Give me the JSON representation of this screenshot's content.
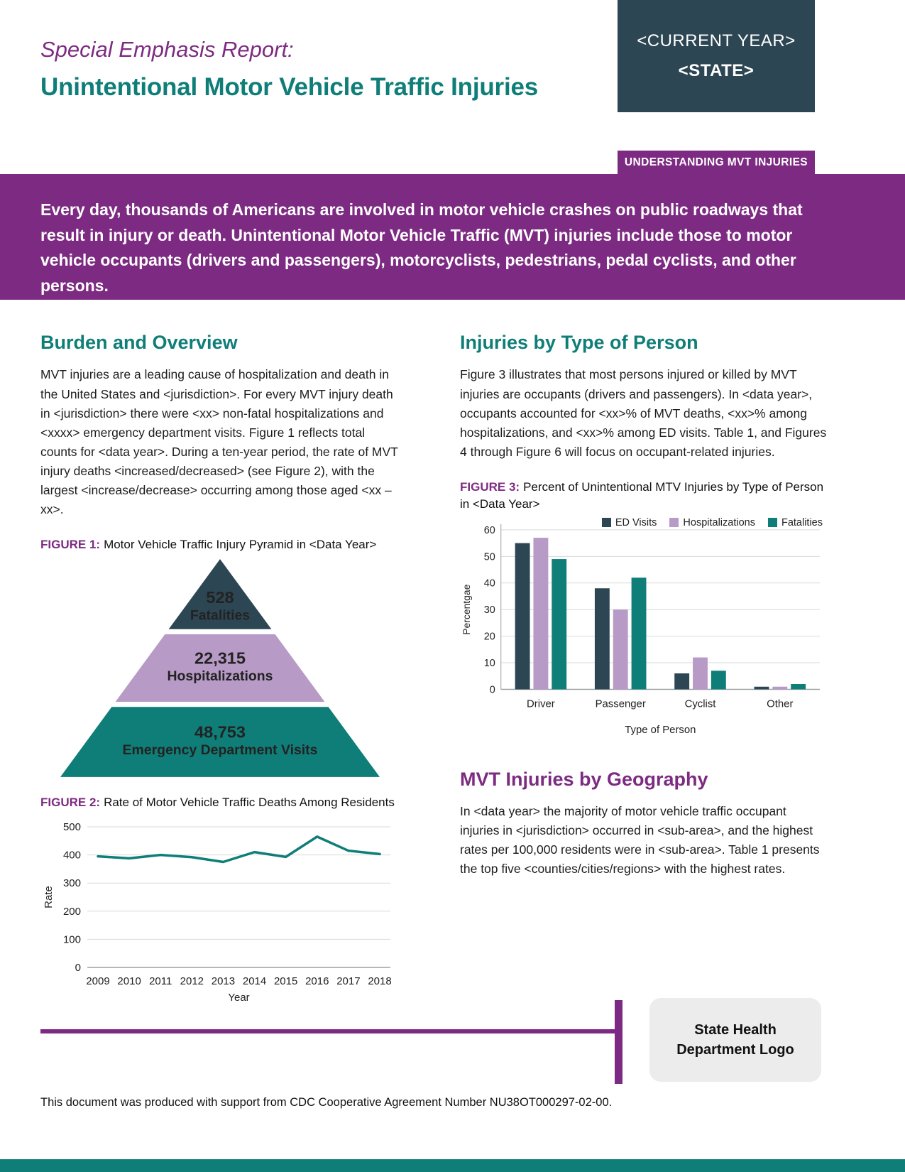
{
  "header": {
    "kicker": "Special Emphasis Report:",
    "title": "Unintentional Motor Vehicle Traffic Injuries",
    "year_box": {
      "current_year": "<CURRENT YEAR>",
      "state": "<STATE>"
    },
    "section_label": "UNDERSTANDING MVT INJURIES"
  },
  "banner": {
    "text": "Every day, thousands of Americans are involved in motor vehicle crashes on public roadways that result in injury or death. Unintentional Motor Vehicle Traffic (MVT) injuries include those to motor vehicle occupants (drivers and passengers), motorcyclists, pedestrians, pedal cyclists, and other persons."
  },
  "sections": {
    "burden": {
      "heading": "Burden and Overview",
      "body": "MVT injuries are a leading cause of hospitalization and death in the United States and <jurisdiction>. For every MVT injury death in <jurisdiction> there were <xx> non-fatal hospitalizations and <xxxx> emergency department visits. Figure 1 reflects total counts for <data year>. During a ten-year period, the rate of MVT injury deaths <increased/decreased> (see Figure 2), with the largest <increase/decrease> occurring among those aged <xx – xx>."
    },
    "type_of_person": {
      "heading": "Injuries by Type of Person",
      "body": "Figure 3 illustrates that most persons injured or killed by MVT injuries are occupants (drivers and passengers). In <data year>, occupants accounted for <xx>% of MVT deaths, <xx>% among hospitalizations, and <xx>% among ED visits. Table 1, and Figures 4 through Figure 6 will focus on occupant-related injuries."
    },
    "geography": {
      "heading": "MVT Injuries by Geography",
      "body": "In <data year> the majority of motor vehicle traffic occupant injuries in <jurisdiction> occurred in <sub-area>, and the highest rates per 100,000 residents were in <sub-area>. Table 1 presents the top five <counties/cities/regions> with the highest rates."
    }
  },
  "figures": {
    "f1": {
      "label": "FIGURE 1:",
      "caption": "Motor Vehicle Traffic Injury Pyramid in <Data Year>"
    },
    "f2": {
      "label": "FIGURE 2:",
      "caption": "Rate of Motor Vehicle Traffic Deaths Among Residents"
    },
    "f3": {
      "label": "FIGURE 3:",
      "caption": "Percent of Unintentional MTV Injuries by Type of Person in <Data Year>"
    }
  },
  "footer": {
    "note": "This document was produced with support from CDC Cooperative Agreement Number NU38OT000297-02-00.",
    "logo_text": "State Health Department Logo"
  },
  "colors": {
    "purple": "#7d2b82",
    "teal": "#0f7e78",
    "slate": "#2d4653",
    "mauve": "#b79ac5",
    "gridline": "#d9d9d9"
  },
  "chart_data": [
    {
      "id": "injury-pyramid",
      "type": "pyramid",
      "title": "Motor Vehicle Traffic Injury Pyramid in <Data Year>",
      "levels": [
        {
          "value": "528",
          "label": "Fatalities",
          "color": "#2d4653"
        },
        {
          "value": "22,315",
          "label": "Hospitalizations",
          "color": "#b79ac5"
        },
        {
          "value": "48,753",
          "label": "Emergency Department Visits",
          "color": "#0f7e78"
        }
      ]
    },
    {
      "id": "death-rate-line",
      "type": "line",
      "title": "Rate of Motor Vehicle Traffic Deaths Among Residents",
      "x": [
        2009,
        2010,
        2011,
        2012,
        2013,
        2014,
        2015,
        2016,
        2017,
        2018
      ],
      "values": [
        395,
        388,
        400,
        392,
        375,
        410,
        393,
        465,
        415,
        403
      ],
      "xlabel": "Year",
      "ylabel": "Rate",
      "ylim": [
        0,
        500
      ],
      "yticks": [
        0,
        100,
        200,
        300,
        400,
        500
      ],
      "line_color": "#0f7e78",
      "grid": true,
      "legend_position": "none"
    },
    {
      "id": "type-of-person-bar",
      "type": "bar",
      "title": "Percent of Unintentional MTV Injuries by Type of Person in <Data Year>",
      "categories": [
        "Driver",
        "Passenger",
        "Cyclist",
        "Other"
      ],
      "series": [
        {
          "name": "ED Visits",
          "color": "#2d4653",
          "values": [
            55,
            38,
            6,
            1
          ]
        },
        {
          "name": "Hospitalizations",
          "color": "#b79ac5",
          "values": [
            57,
            30,
            12,
            1
          ]
        },
        {
          "name": "Fatalities",
          "color": "#0f7e78",
          "values": [
            49,
            42,
            7,
            2
          ]
        }
      ],
      "xlabel": "Type of Person",
      "ylabel": "Percentgae",
      "ylim": [
        0,
        60
      ],
      "yticks": [
        0,
        10,
        20,
        30,
        40,
        50,
        60
      ],
      "grid": true,
      "legend_position": "top-right"
    }
  ]
}
